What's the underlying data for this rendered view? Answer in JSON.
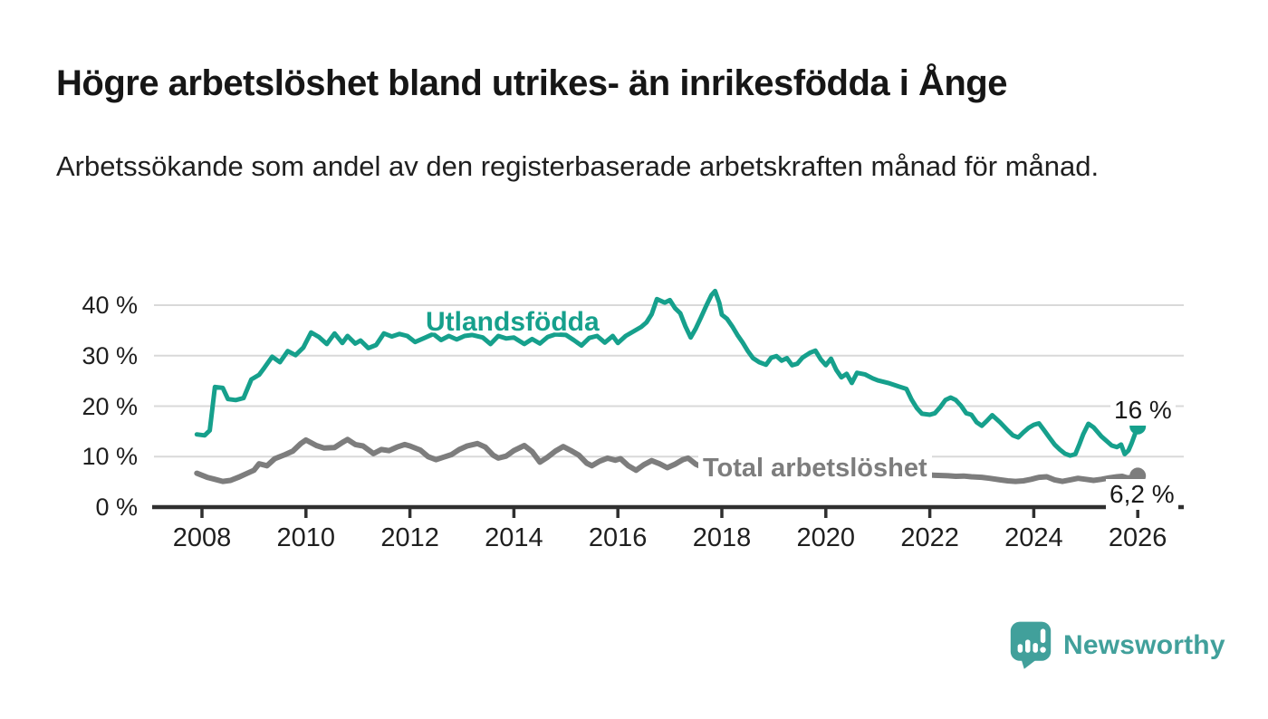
{
  "header": {
    "title": "Högre arbetslöshet bland utrikes- än inrikesfödda i Ånge",
    "subtitle": "Arbetssökande som andel av den registerbaserade arbetskraften månad för månad."
  },
  "colors": {
    "accent_teal": "#16a08c",
    "series_gray": "#7d7d7d",
    "axis": "#2f2f2f",
    "gridline": "#d9d9d9",
    "text": "#1f1f1f",
    "logo_teal": "#41a09b"
  },
  "footer": {
    "brand": "Newsworthy",
    "logo_icon": "speech-bubble-bar-chart-icon"
  },
  "chart_data": {
    "type": "line",
    "title": "Högre arbetslöshet bland utrikes- än inrikesfödda i Ånge",
    "xlabel": "",
    "ylabel": "",
    "grid": "horizontal",
    "legend_position": "inline-labels",
    "x_axis": {
      "ticks": [
        2008,
        2010,
        2012,
        2014,
        2016,
        2018,
        2020,
        2022,
        2024,
        2026
      ],
      "tick_labels": [
        "2008",
        "2010",
        "2012",
        "2014",
        "2016",
        "2018",
        "2020",
        "2022",
        "2024",
        "2026"
      ],
      "range": [
        2007.85,
        2026.9
      ]
    },
    "y_axis": {
      "ticks": [
        0,
        10,
        20,
        30,
        40
      ],
      "tick_labels": [
        "0 %",
        "10 %",
        "20 %",
        "30 %",
        "40 %"
      ],
      "range": [
        0,
        43.5
      ]
    },
    "series": [
      {
        "name": "Utlandsfödda",
        "color": "#16a08c",
        "stroke_width": 5,
        "end_dot": true,
        "end_label": "16 %",
        "points": [
          [
            2007.9,
            14.4
          ],
          [
            2008.05,
            14.2
          ],
          [
            2008.15,
            15.2
          ],
          [
            2008.25,
            23.8
          ],
          [
            2008.4,
            23.6
          ],
          [
            2008.5,
            21.4
          ],
          [
            2008.65,
            21.2
          ],
          [
            2008.8,
            21.6
          ],
          [
            2008.95,
            25.3
          ],
          [
            2009.1,
            26.2
          ],
          [
            2009.2,
            27.6
          ],
          [
            2009.35,
            29.8
          ],
          [
            2009.5,
            28.7
          ],
          [
            2009.65,
            30.9
          ],
          [
            2009.8,
            30.1
          ],
          [
            2009.95,
            31.6
          ],
          [
            2010.1,
            34.6
          ],
          [
            2010.25,
            33.7
          ],
          [
            2010.4,
            32.3
          ],
          [
            2010.55,
            34.4
          ],
          [
            2010.7,
            32.5
          ],
          [
            2010.8,
            33.9
          ],
          [
            2010.95,
            32.4
          ],
          [
            2011.05,
            33.0
          ],
          [
            2011.2,
            31.5
          ],
          [
            2011.35,
            32.1
          ],
          [
            2011.5,
            34.4
          ],
          [
            2011.65,
            33.8
          ],
          [
            2011.8,
            34.3
          ],
          [
            2011.95,
            33.9
          ],
          [
            2012.1,
            32.7
          ],
          [
            2012.3,
            33.6
          ],
          [
            2012.45,
            34.3
          ],
          [
            2012.6,
            33.1
          ],
          [
            2012.75,
            33.9
          ],
          [
            2012.9,
            33.2
          ],
          [
            2013.05,
            33.9
          ],
          [
            2013.2,
            34.1
          ],
          [
            2013.4,
            33.6
          ],
          [
            2013.55,
            32.3
          ],
          [
            2013.7,
            33.9
          ],
          [
            2013.85,
            33.4
          ],
          [
            2014.0,
            33.6
          ],
          [
            2014.2,
            32.3
          ],
          [
            2014.35,
            33.3
          ],
          [
            2014.5,
            32.4
          ],
          [
            2014.65,
            33.7
          ],
          [
            2014.8,
            34.2
          ],
          [
            2015.0,
            34.1
          ],
          [
            2015.15,
            33.1
          ],
          [
            2015.3,
            32.0
          ],
          [
            2015.45,
            33.5
          ],
          [
            2015.6,
            33.9
          ],
          [
            2015.75,
            32.6
          ],
          [
            2015.9,
            33.9
          ],
          [
            2016.0,
            32.5
          ],
          [
            2016.15,
            33.9
          ],
          [
            2016.3,
            34.8
          ],
          [
            2016.45,
            35.7
          ],
          [
            2016.55,
            36.6
          ],
          [
            2016.65,
            38.2
          ],
          [
            2016.75,
            41.2
          ],
          [
            2016.9,
            40.5
          ],
          [
            2017.0,
            41.0
          ],
          [
            2017.1,
            39.4
          ],
          [
            2017.2,
            38.4
          ],
          [
            2017.3,
            35.8
          ],
          [
            2017.4,
            33.6
          ],
          [
            2017.5,
            35.4
          ],
          [
            2017.6,
            37.6
          ],
          [
            2017.7,
            39.9
          ],
          [
            2017.8,
            42.0
          ],
          [
            2017.87,
            42.8
          ],
          [
            2017.95,
            40.5
          ],
          [
            2018.0,
            38.1
          ],
          [
            2018.1,
            37.3
          ],
          [
            2018.2,
            35.8
          ],
          [
            2018.3,
            34.1
          ],
          [
            2018.4,
            32.6
          ],
          [
            2018.5,
            30.9
          ],
          [
            2018.6,
            29.5
          ],
          [
            2018.72,
            28.7
          ],
          [
            2018.85,
            28.2
          ],
          [
            2018.95,
            29.6
          ],
          [
            2019.05,
            29.9
          ],
          [
            2019.15,
            29.0
          ],
          [
            2019.25,
            29.5
          ],
          [
            2019.35,
            28.1
          ],
          [
            2019.45,
            28.4
          ],
          [
            2019.55,
            29.6
          ],
          [
            2019.7,
            30.6
          ],
          [
            2019.8,
            31.0
          ],
          [
            2019.9,
            29.3
          ],
          [
            2020.0,
            28.1
          ],
          [
            2020.1,
            29.4
          ],
          [
            2020.2,
            27.2
          ],
          [
            2020.3,
            25.7
          ],
          [
            2020.4,
            26.4
          ],
          [
            2020.5,
            24.6
          ],
          [
            2020.6,
            26.6
          ],
          [
            2020.75,
            26.3
          ],
          [
            2020.9,
            25.5
          ],
          [
            2021.0,
            25.1
          ],
          [
            2021.2,
            24.6
          ],
          [
            2021.4,
            23.9
          ],
          [
            2021.55,
            23.4
          ],
          [
            2021.65,
            21.3
          ],
          [
            2021.75,
            19.6
          ],
          [
            2021.85,
            18.5
          ],
          [
            2022.0,
            18.3
          ],
          [
            2022.1,
            18.6
          ],
          [
            2022.2,
            19.8
          ],
          [
            2022.3,
            21.2
          ],
          [
            2022.4,
            21.7
          ],
          [
            2022.5,
            21.2
          ],
          [
            2022.6,
            20.1
          ],
          [
            2022.7,
            18.6
          ],
          [
            2022.8,
            18.3
          ],
          [
            2022.9,
            16.8
          ],
          [
            2023.0,
            16.1
          ],
          [
            2023.1,
            17.1
          ],
          [
            2023.2,
            18.2
          ],
          [
            2023.35,
            16.8
          ],
          [
            2023.5,
            15.2
          ],
          [
            2023.6,
            14.2
          ],
          [
            2023.7,
            13.8
          ],
          [
            2023.8,
            14.8
          ],
          [
            2023.9,
            15.7
          ],
          [
            2024.0,
            16.3
          ],
          [
            2024.1,
            16.6
          ],
          [
            2024.2,
            15.2
          ],
          [
            2024.3,
            13.8
          ],
          [
            2024.4,
            12.4
          ],
          [
            2024.5,
            11.4
          ],
          [
            2024.6,
            10.6
          ],
          [
            2024.7,
            10.2
          ],
          [
            2024.8,
            10.5
          ],
          [
            2024.88,
            12.5
          ],
          [
            2024.95,
            14.4
          ],
          [
            2025.05,
            16.5
          ],
          [
            2025.15,
            15.8
          ],
          [
            2025.3,
            14.0
          ],
          [
            2025.4,
            13.1
          ],
          [
            2025.5,
            12.2
          ],
          [
            2025.6,
            11.9
          ],
          [
            2025.68,
            12.4
          ],
          [
            2025.75,
            10.5
          ],
          [
            2025.82,
            11.2
          ],
          [
            2025.88,
            12.6
          ],
          [
            2025.94,
            14.3
          ],
          [
            2026.0,
            16.0
          ]
        ]
      },
      {
        "name": "Total arbetslöshet",
        "color": "#7d7d7d",
        "stroke_width": 6,
        "end_dot": true,
        "end_label": "6,2 %",
        "points": [
          [
            2007.9,
            6.7
          ],
          [
            2008.1,
            5.9
          ],
          [
            2008.25,
            5.5
          ],
          [
            2008.4,
            5.1
          ],
          [
            2008.55,
            5.3
          ],
          [
            2008.7,
            5.9
          ],
          [
            2008.85,
            6.6
          ],
          [
            2009.0,
            7.3
          ],
          [
            2009.1,
            8.6
          ],
          [
            2009.25,
            8.2
          ],
          [
            2009.4,
            9.6
          ],
          [
            2009.6,
            10.4
          ],
          [
            2009.75,
            11.1
          ],
          [
            2009.9,
            12.6
          ],
          [
            2010.0,
            13.3
          ],
          [
            2010.2,
            12.2
          ],
          [
            2010.35,
            11.7
          ],
          [
            2010.55,
            11.8
          ],
          [
            2010.7,
            12.8
          ],
          [
            2010.8,
            13.4
          ],
          [
            2010.95,
            12.4
          ],
          [
            2011.1,
            12.1
          ],
          [
            2011.3,
            10.6
          ],
          [
            2011.45,
            11.4
          ],
          [
            2011.6,
            11.2
          ],
          [
            2011.75,
            11.9
          ],
          [
            2011.9,
            12.4
          ],
          [
            2012.0,
            12.1
          ],
          [
            2012.2,
            11.3
          ],
          [
            2012.35,
            10.0
          ],
          [
            2012.5,
            9.4
          ],
          [
            2012.65,
            9.9
          ],
          [
            2012.8,
            10.4
          ],
          [
            2012.95,
            11.4
          ],
          [
            2013.1,
            12.1
          ],
          [
            2013.3,
            12.6
          ],
          [
            2013.45,
            11.9
          ],
          [
            2013.6,
            10.3
          ],
          [
            2013.7,
            9.7
          ],
          [
            2013.85,
            10.1
          ],
          [
            2014.0,
            11.2
          ],
          [
            2014.2,
            12.2
          ],
          [
            2014.35,
            11.0
          ],
          [
            2014.5,
            8.9
          ],
          [
            2014.65,
            9.9
          ],
          [
            2014.8,
            11.1
          ],
          [
            2014.95,
            12.0
          ],
          [
            2015.1,
            11.2
          ],
          [
            2015.25,
            10.3
          ],
          [
            2015.4,
            8.7
          ],
          [
            2015.5,
            8.2
          ],
          [
            2015.65,
            9.1
          ],
          [
            2015.8,
            9.7
          ],
          [
            2015.95,
            9.3
          ],
          [
            2016.05,
            9.6
          ],
          [
            2016.2,
            8.2
          ],
          [
            2016.35,
            7.3
          ],
          [
            2016.5,
            8.4
          ],
          [
            2016.65,
            9.2
          ],
          [
            2016.8,
            8.6
          ],
          [
            2016.95,
            7.8
          ],
          [
            2017.1,
            8.5
          ],
          [
            2017.25,
            9.4
          ],
          [
            2017.35,
            9.7
          ],
          [
            2017.5,
            8.5
          ],
          [
            2017.65,
            7.8
          ],
          [
            2017.8,
            7.6
          ],
          [
            2018.0,
            8.0
          ],
          [
            2018.3,
            7.4
          ],
          [
            2018.6,
            7.0
          ],
          [
            2018.9,
            7.3
          ],
          [
            2019.2,
            7.0
          ],
          [
            2019.5,
            6.6
          ],
          [
            2019.8,
            6.9
          ],
          [
            2020.1,
            7.3
          ],
          [
            2020.4,
            7.6
          ],
          [
            2020.7,
            7.2
          ],
          [
            2021.0,
            7.0
          ],
          [
            2021.3,
            6.7
          ],
          [
            2021.6,
            6.4
          ],
          [
            2021.9,
            6.4
          ],
          [
            2022.1,
            6.3
          ],
          [
            2022.35,
            6.2
          ],
          [
            2022.5,
            6.1
          ],
          [
            2022.65,
            6.15
          ],
          [
            2022.8,
            6.0
          ],
          [
            2023.0,
            5.9
          ],
          [
            2023.15,
            5.7
          ],
          [
            2023.35,
            5.4
          ],
          [
            2023.5,
            5.2
          ],
          [
            2023.65,
            5.1
          ],
          [
            2023.8,
            5.2
          ],
          [
            2023.95,
            5.5
          ],
          [
            2024.1,
            5.9
          ],
          [
            2024.25,
            6.0
          ],
          [
            2024.4,
            5.4
          ],
          [
            2024.55,
            5.1
          ],
          [
            2024.7,
            5.4
          ],
          [
            2024.85,
            5.7
          ],
          [
            2025.0,
            5.5
          ],
          [
            2025.15,
            5.3
          ],
          [
            2025.3,
            5.5
          ],
          [
            2025.45,
            5.8
          ],
          [
            2025.6,
            6.0
          ],
          [
            2025.7,
            6.1
          ],
          [
            2025.8,
            5.8
          ],
          [
            2025.9,
            5.9
          ],
          [
            2026.0,
            6.2
          ]
        ]
      }
    ],
    "annotations": {
      "series_label_1": "Utlandsfödda",
      "series_label_2": "Total arbetslöshet",
      "end_value_1": "16 %",
      "end_value_2": "6,2 %"
    }
  }
}
